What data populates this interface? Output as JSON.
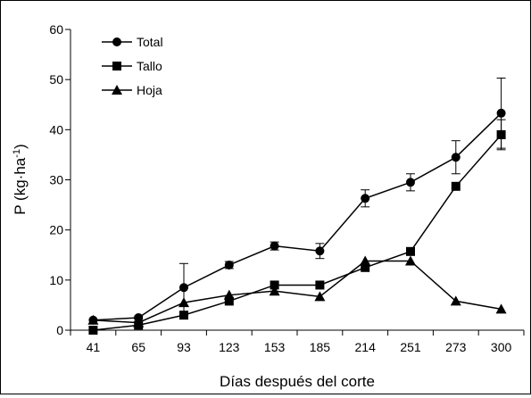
{
  "chart_data": {
    "type": "line",
    "title": "",
    "xlabel": "Días después del corte",
    "ylabel_main": "P  (kg·ha",
    "ylabel_sup": "-1",
    "ylabel_close": ")",
    "categories": [
      "41",
      "65",
      "93",
      "123",
      "153",
      "185",
      "214",
      "251",
      "273",
      "300"
    ],
    "ylim": [
      0,
      60
    ],
    "yticks": [
      0,
      10,
      20,
      30,
      40,
      50,
      60
    ],
    "grid": false,
    "legend_position": "top-left",
    "series": [
      {
        "name": "Total",
        "marker": "circle",
        "values": [
          2.0,
          2.5,
          8.5,
          13.0,
          16.8,
          15.8,
          26.3,
          29.5,
          34.5,
          43.3
        ],
        "error": [
          0.0,
          0.3,
          4.8,
          0.7,
          0.8,
          1.5,
          1.7,
          1.7,
          3.3,
          7.0
        ]
      },
      {
        "name": "Tallo",
        "marker": "square",
        "values": [
          0.0,
          1.0,
          3.0,
          5.8,
          9.0,
          9.0,
          12.5,
          15.7,
          28.7,
          39.0
        ],
        "error": [
          0,
          0,
          0,
          0,
          0,
          0,
          0,
          0,
          0,
          3.0
        ]
      },
      {
        "name": "Hoja",
        "marker": "triangle",
        "values": [
          2.0,
          1.5,
          5.5,
          7.0,
          7.8,
          6.7,
          13.8,
          13.8,
          5.8,
          4.2
        ],
        "error": [
          0,
          0,
          0,
          0,
          0,
          0,
          0,
          0,
          0,
          0
        ]
      }
    ]
  }
}
